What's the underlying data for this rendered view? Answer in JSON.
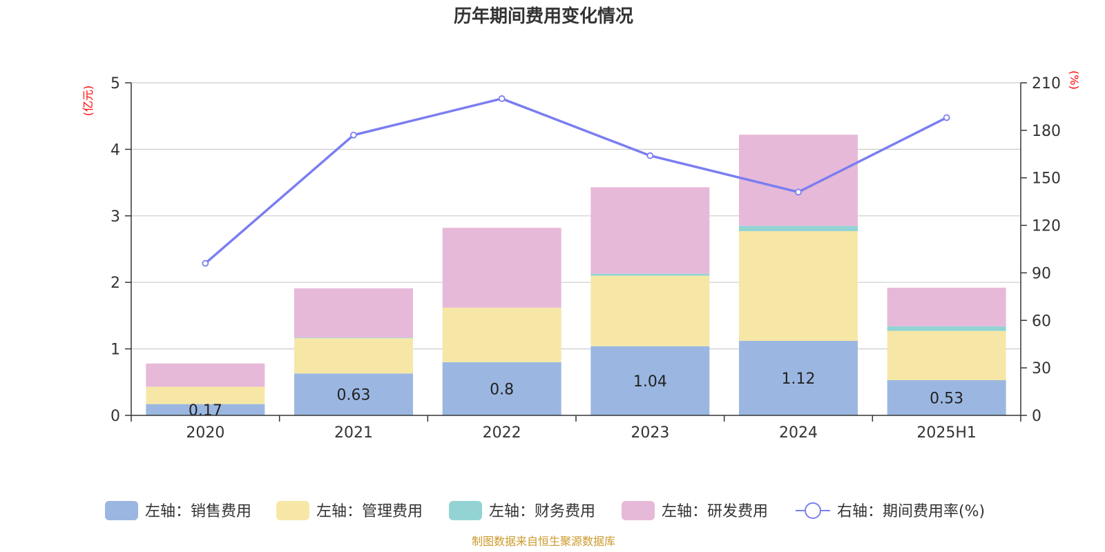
{
  "chart_data": {
    "type": "bar",
    "title": "历年期间费用变化情况",
    "categories": [
      "2020",
      "2021",
      "2022",
      "2023",
      "2024",
      "2025H1"
    ],
    "left_axis": {
      "unit": "(亿元)",
      "ylim": [
        0,
        5
      ],
      "ticks": [
        "0",
        "1",
        "2",
        "3",
        "4",
        "5"
      ]
    },
    "right_axis": {
      "unit": "(%)",
      "ylim": [
        0,
        210
      ],
      "ticks": [
        "0",
        "30",
        "60",
        "90",
        "120",
        "150",
        "180",
        "210"
      ]
    },
    "series": [
      {
        "name": "左轴：销售费用",
        "kind": "bar",
        "axis": "left",
        "color": "#9bb7e1",
        "values": [
          0.17,
          0.63,
          0.8,
          1.04,
          1.12,
          0.53
        ],
        "labels": [
          "0.17",
          "0.63",
          "0.8",
          "1.04",
          "1.12",
          "0.53"
        ]
      },
      {
        "name": "左轴：管理费用",
        "kind": "bar",
        "axis": "left",
        "color": "#f7e7a6",
        "values": [
          0.26,
          0.53,
          0.82,
          1.06,
          1.65,
          0.74
        ]
      },
      {
        "name": "左轴：财务费用",
        "kind": "bar",
        "axis": "left",
        "color": "#94d3d4",
        "values": [
          0.0,
          0.01,
          0.0,
          0.03,
          0.08,
          0.07
        ]
      },
      {
        "name": "左轴：研发费用",
        "kind": "bar",
        "axis": "left",
        "color": "#e7b9d9",
        "values": [
          0.35,
          0.74,
          1.2,
          1.3,
          1.37,
          0.58
        ]
      },
      {
        "name": "右轴：期间费用率(%)",
        "kind": "line",
        "axis": "right",
        "color": "#7a7ef0",
        "values": [
          96,
          177,
          200,
          164,
          141,
          188
        ]
      }
    ],
    "grid": true,
    "legend_position": "bottom"
  },
  "footer": {
    "source": "制图数据来自恒生聚源数据库"
  }
}
